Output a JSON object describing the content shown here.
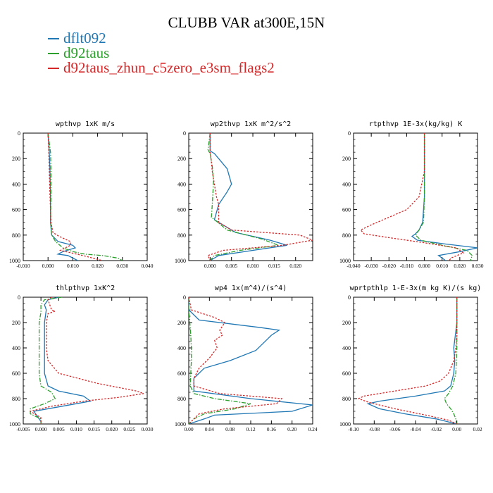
{
  "title": "CLUBB VAR at300E,15N",
  "legend": [
    {
      "label": "dflt092",
      "color": "#1f77b4"
    },
    {
      "label": "d92taus",
      "color": "#2ca02c"
    },
    {
      "label": "d92taus_zhun_c5zero_e3sm_flags2",
      "color": "#d62728"
    }
  ],
  "chart_data": [
    {
      "type": "line",
      "title": "wpthvp  1xK m/s",
      "xlim": [
        -0.01,
        0.04
      ],
      "xticks": [
        "-0.010",
        "0.000",
        "0.010",
        "0.020",
        "0.030",
        "0.040"
      ],
      "xtickvals": [
        -0.01,
        0.0,
        0.01,
        0.02,
        0.03,
        0.04
      ],
      "ylim": [
        0,
        1000
      ],
      "yticks": [
        0,
        200,
        400,
        600,
        800,
        1000
      ],
      "series": [
        {
          "name": "dflt092",
          "y": [
            0,
            150,
            300,
            500,
            700,
            800,
            850,
            880,
            900,
            930,
            950,
            960,
            1000
          ],
          "x": [
            0.0,
            0.0005,
            0.0008,
            0.001,
            0.001,
            0.0015,
            0.004,
            0.01,
            0.011,
            0.006,
            0.004,
            0.008,
            0.012
          ]
        },
        {
          "name": "d92taus",
          "y": [
            0,
            150,
            300,
            500,
            700,
            800,
            850,
            900,
            930,
            950,
            960,
            980,
            1000
          ],
          "x": [
            0.0,
            0.001,
            0.0012,
            0.0012,
            0.001,
            0.0015,
            0.003,
            0.006,
            0.01,
            0.015,
            0.022,
            0.028,
            0.03
          ]
        },
        {
          "name": "d92taus_zhun_c5zero_e3sm_flags2",
          "y": [
            0,
            150,
            300,
            500,
            700,
            780,
            810,
            850,
            880,
            920,
            960,
            1000
          ],
          "x": [
            0.0,
            0.0003,
            0.0005,
            0.0008,
            0.0012,
            0.002,
            0.0045,
            0.009,
            0.009,
            0.005,
            0.014,
            0.022
          ]
        }
      ]
    },
    {
      "type": "line",
      "title": "wp2thvp  1xK m^2/s^2",
      "xlim": [
        -0.005,
        0.024
      ],
      "xticks": [
        "0.000",
        "0.005",
        "0.010",
        "0.015",
        "0.020"
      ],
      "xtickvals": [
        0.0,
        0.005,
        0.01,
        0.015,
        0.02
      ],
      "ylim": [
        0,
        1000
      ],
      "yticks": [
        0,
        200,
        400,
        600,
        800,
        1000
      ],
      "series": [
        {
          "name": "dflt092",
          "y": [
            0,
            140,
            160,
            200,
            280,
            400,
            460,
            560,
            680,
            780,
            840,
            880,
            920,
            960,
            1000
          ],
          "x": [
            0.0,
            0.0,
            0.001,
            0.002,
            0.004,
            0.005,
            0.004,
            0.002,
            0.001,
            0.006,
            0.014,
            0.018,
            0.01,
            0.002,
            0.0
          ]
        },
        {
          "name": "d92taus",
          "y": [
            0,
            130,
            160,
            260,
            380,
            560,
            660,
            760,
            830,
            880,
            920,
            960,
            1000
          ],
          "x": [
            0.0,
            -0.0005,
            0.0,
            0.0005,
            0.0008,
            0.0005,
            0.0003,
            0.004,
            0.012,
            0.016,
            0.007,
            0.001,
            0.0
          ]
        },
        {
          "name": "d92taus_zhun_c5zero_e3sm_flags2",
          "y": [
            0,
            140,
            200,
            300,
            400,
            500,
            560,
            620,
            700,
            760,
            800,
            840,
            880,
            920,
            960,
            1000
          ],
          "x": [
            0.0,
            0.0,
            0.0002,
            0.0005,
            0.001,
            0.0015,
            0.002,
            0.002,
            0.002,
            0.005,
            0.021,
            0.024,
            0.017,
            0.003,
            -0.0005,
            0.0
          ]
        }
      ]
    },
    {
      "type": "line",
      "title": "rtpthvp  1E-3x(kg/kg) K",
      "xlim": [
        -0.04,
        0.03
      ],
      "xticks": [
        "-0.040",
        "-0.030",
        "-0.020",
        "-0.010",
        "0.000",
        "0.010",
        "0.020",
        "0.030"
      ],
      "xtickvals": [
        -0.04,
        -0.03,
        -0.02,
        -0.01,
        0.0,
        0.01,
        0.02,
        0.03
      ],
      "ylim": [
        0,
        1000
      ],
      "yticks": [
        0,
        200,
        400,
        600,
        800,
        1000
      ],
      "series": [
        {
          "name": "dflt092",
          "y": [
            0,
            300,
            500,
            700,
            760,
            790,
            810,
            840,
            870,
            900,
            930,
            960,
            1000
          ],
          "x": [
            0.0,
            0.0,
            0.0,
            -0.001,
            -0.003,
            -0.005,
            -0.007,
            -0.004,
            0.012,
            0.03,
            0.02,
            0.008,
            0.012
          ]
        },
        {
          "name": "d92taus",
          "y": [
            0,
            300,
            500,
            700,
            760,
            800,
            840,
            880,
            920,
            960,
            1000
          ],
          "x": [
            0.0,
            0.0,
            0.0,
            -0.0005,
            -0.003,
            -0.005,
            -0.002,
            0.01,
            0.024,
            0.027,
            0.026
          ]
        },
        {
          "name": "d92taus_zhun_c5zero_e3sm_flags2",
          "y": [
            0,
            300,
            500,
            600,
            660,
            720,
            760,
            790,
            820,
            860,
            900,
            940,
            980,
            1000
          ],
          "x": [
            0.0,
            0.0,
            -0.003,
            -0.01,
            -0.02,
            -0.03,
            -0.036,
            -0.034,
            -0.02,
            0.0,
            0.018,
            0.022,
            0.015,
            0.014
          ]
        }
      ]
    },
    {
      "type": "line",
      "title": "thlpthvp  1xK^2",
      "xlim": [
        -0.005,
        0.03
      ],
      "xticks": [
        "-0.005",
        "0.000",
        "0.005",
        "0.010",
        "0.015",
        "0.020",
        "0.025",
        "0.030"
      ],
      "xtickvals": [
        -0.005,
        0.0,
        0.005,
        0.01,
        0.015,
        0.02,
        0.025,
        0.03
      ],
      "ylim": [
        0,
        1000
      ],
      "yticks": [
        0,
        200,
        400,
        600,
        800,
        1000
      ],
      "series": [
        {
          "name": "dflt092",
          "y": [
            0,
            20,
            60,
            100,
            200,
            400,
            600,
            700,
            740,
            780,
            820,
            860,
            900,
            940,
            980,
            1000
          ],
          "x": [
            0.005,
            0.002,
            0.001,
            0.0015,
            0.001,
            0.001,
            0.001,
            0.002,
            0.005,
            0.012,
            0.014,
            0.006,
            -0.002,
            -0.001,
            0.0,
            0.0
          ]
        },
        {
          "name": "d92taus",
          "y": [
            0,
            20,
            60,
            120,
            200,
            400,
            600,
            700,
            750,
            800,
            840,
            880,
            920,
            960,
            1000
          ],
          "x": [
            0.006,
            0.001,
            0.0,
            0.0,
            -0.0005,
            -0.0005,
            -0.0005,
            0.0,
            0.003,
            0.004,
            0.001,
            -0.003,
            -0.003,
            0.0,
            0.0
          ]
        },
        {
          "name": "d92taus_zhun_c5zero_e3sm_flags2",
          "y": [
            0,
            20,
            60,
            100,
            110,
            130,
            200,
            400,
            500,
            600,
            680,
            740,
            760,
            790,
            820,
            860,
            900,
            950,
            1000
          ],
          "x": [
            0.003,
            0.002,
            0.0025,
            0.003,
            0.004,
            0.002,
            0.0015,
            0.0015,
            0.002,
            0.005,
            0.016,
            0.027,
            0.029,
            0.022,
            0.012,
            0.003,
            -0.003,
            0.0,
            0.0
          ]
        }
      ]
    },
    {
      "type": "line",
      "title": "wp4  1x(m^4)/(s^4)",
      "xlim": [
        0.0,
        0.24
      ],
      "xticks": [
        "0.00",
        "0.04",
        "0.08",
        "0.12",
        "0.16",
        "0.20",
        "0.24"
      ],
      "xtickvals": [
        0.0,
        0.04,
        0.08,
        0.12,
        0.16,
        0.2,
        0.24
      ],
      "ylim": [
        0,
        1000
      ],
      "yticks": [
        0,
        200,
        400,
        600,
        800,
        1000
      ],
      "series": [
        {
          "name": "dflt092",
          "y": [
            0,
            100,
            180,
            240,
            260,
            300,
            420,
            500,
            560,
            640,
            740,
            800,
            850,
            900,
            930,
            960,
            1000
          ],
          "x": [
            0.0,
            0.0,
            0.02,
            0.14,
            0.175,
            0.16,
            0.13,
            0.08,
            0.03,
            0.01,
            0.01,
            0.12,
            0.24,
            0.2,
            0.05,
            0.03,
            0.0
          ]
        },
        {
          "name": "d92taus",
          "y": [
            0,
            100,
            200,
            300,
            400,
            500,
            600,
            700,
            760,
            800,
            840,
            880,
            920,
            960,
            1000
          ],
          "x": [
            0.0,
            0.0,
            0.002,
            0.004,
            0.005,
            0.005,
            0.004,
            0.003,
            0.01,
            0.05,
            0.12,
            0.09,
            0.03,
            0.01,
            0.0
          ]
        },
        {
          "name": "d92taus_zhun_c5zero_e3sm_flags2",
          "y": [
            0,
            100,
            160,
            200,
            260,
            300,
            340,
            400,
            480,
            560,
            640,
            700,
            760,
            800,
            840,
            880,
            920,
            960,
            1000
          ],
          "x": [
            0.0,
            0.005,
            0.05,
            0.07,
            0.06,
            0.065,
            0.05,
            0.055,
            0.04,
            0.02,
            0.01,
            0.01,
            0.06,
            0.18,
            0.17,
            0.07,
            0.02,
            0.01,
            0.0
          ]
        }
      ]
    },
    {
      "type": "line",
      "title": "wprtpthlp  1-E-3x(m kg K)/(s kg)",
      "xlim": [
        -0.1,
        0.02
      ],
      "xticks": [
        "-0.10",
        "-0.08",
        "-0.06",
        "-0.04",
        "-0.02",
        "0.00",
        "0.02"
      ],
      "xtickvals": [
        -0.1,
        -0.08,
        -0.06,
        -0.04,
        -0.02,
        0.0,
        0.02
      ],
      "ylim": [
        0,
        1000
      ],
      "yticks": [
        0,
        200,
        400,
        600,
        800,
        1000
      ],
      "series": [
        {
          "name": "dflt092",
          "y": [
            0,
            200,
            400,
            500,
            600,
            700,
            740,
            780,
            820,
            840,
            880,
            920,
            960,
            1000
          ],
          "x": [
            0.0,
            0.0,
            -0.003,
            -0.002,
            -0.003,
            -0.006,
            -0.012,
            -0.04,
            -0.075,
            -0.086,
            -0.075,
            -0.05,
            -0.02,
            0.0
          ]
        },
        {
          "name": "d92taus",
          "y": [
            0,
            200,
            400,
            600,
            700,
            760,
            800,
            840,
            880,
            920,
            960,
            990,
            1000
          ],
          "x": [
            0.0,
            0.0,
            0.0,
            -0.001,
            -0.004,
            -0.008,
            -0.012,
            -0.01,
            -0.006,
            -0.003,
            -0.001,
            -0.0005,
            0.0
          ]
        },
        {
          "name": "d92taus_zhun_c5zero_e3sm_flags2",
          "y": [
            0,
            300,
            400,
            500,
            600,
            660,
            700,
            740,
            780,
            800,
            830,
            880,
            930,
            970,
            1000
          ],
          "x": [
            0.0,
            0.0,
            -0.001,
            -0.003,
            -0.008,
            -0.016,
            -0.03,
            -0.06,
            -0.09,
            -0.095,
            -0.085,
            -0.06,
            -0.03,
            -0.008,
            0.0
          ]
        }
      ]
    }
  ]
}
